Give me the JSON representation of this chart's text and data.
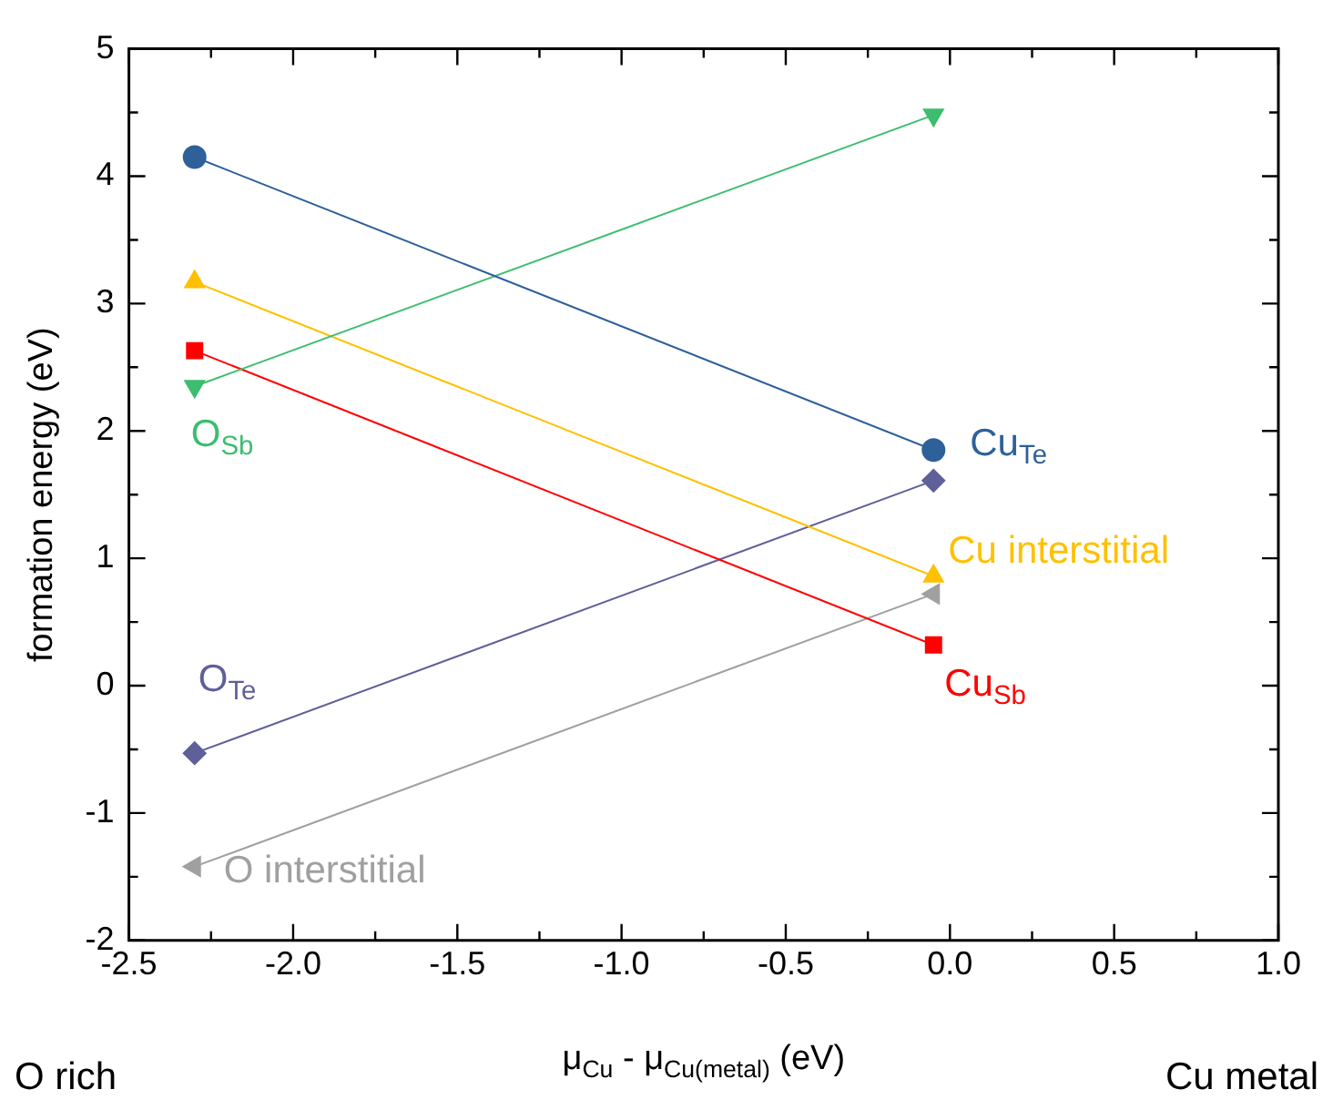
{
  "chart_data": {
    "type": "line",
    "xlabel": "μ$_{Cu}$ - μ$_{Cu(metal)}$ (eV)",
    "ylabel": "formation energy (eV)",
    "x": [
      -2.3,
      -0.05
    ],
    "series": [
      {
        "name": "Cu$_{Te}$",
        "color": "#2e6099",
        "marker": "circle",
        "values": [
          4.15,
          1.85
        ]
      },
      {
        "name": "O$_{Sb}$",
        "color": "#3cbd6f",
        "marker": "triangle-down",
        "values": [
          2.35,
          4.48
        ]
      },
      {
        "name": "Cu interstitial",
        "color": "#ffc000",
        "marker": "triangle",
        "values": [
          3.17,
          0.86
        ]
      },
      {
        "name": "Cu$_{Sb}$",
        "color": "#ff0000",
        "marker": "square",
        "values": [
          2.63,
          0.32
        ]
      },
      {
        "name": "O$_{Te}$",
        "color": "#5f5f99",
        "marker": "diamond",
        "values": [
          -0.53,
          1.61
        ]
      },
      {
        "name": "O interstitial",
        "color": "#a0a0a0",
        "marker": "triangle-left",
        "values": [
          -1.42,
          0.72
        ]
      }
    ],
    "xlim": [
      -2.5,
      1.0
    ],
    "xticks": [
      {
        "value": -2.5,
        "label": "-2.5"
      },
      {
        "value": -2.25,
        "label": null
      },
      {
        "value": -2.0,
        "label": "-2.0"
      },
      {
        "value": -1.75,
        "label": null
      },
      {
        "value": -1.5,
        "label": "-1.5"
      },
      {
        "value": -1.25,
        "label": null
      },
      {
        "value": -1.0,
        "label": "-1.0"
      },
      {
        "value": -0.75,
        "label": null
      },
      {
        "value": -0.5,
        "label": "-0.5"
      },
      {
        "value": -0.25,
        "label": null
      },
      {
        "value": 0,
        "label": "0.0"
      },
      {
        "value": 0.25,
        "label": null
      },
      {
        "value": 0.5,
        "label": "0.5"
      },
      {
        "value": 0.75,
        "label": null
      },
      {
        "value": 1.0,
        "label": "1.0"
      }
    ],
    "ylim": [
      -2,
      5
    ],
    "yticks": [
      -2,
      {
        "value": -1.5,
        "label": null
      },
      -1,
      {
        "value": -0.5,
        "label": null
      },
      0,
      {
        "value": 0.5,
        "label": null
      },
      1,
      {
        "value": 1.5,
        "label": null
      },
      2,
      {
        "value": 2.5,
        "label": null
      },
      3,
      {
        "value": 3.5,
        "label": null
      },
      4,
      {
        "value": 4.5,
        "label": null
      },
      5
    ],
    "annotations": [
      "O rich",
      "Cu metal"
    ],
    "grid": false,
    "legend": false,
    "line_style": "solid"
  }
}
